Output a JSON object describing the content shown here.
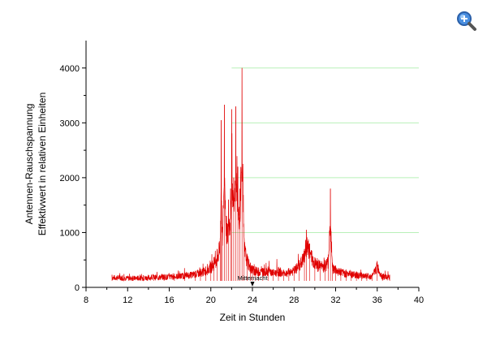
{
  "chart_data": {
    "type": "line",
    "xlabel": "Zeit in Stunden",
    "ylabel": [
      "Antennen-Rauschspannung",
      "Effektivwert in relativen Einheiten"
    ],
    "xlim": [
      8,
      40
    ],
    "ylim": [
      0,
      4500
    ],
    "xticks": [
      8,
      12,
      16,
      20,
      24,
      28,
      32,
      36,
      40
    ],
    "yticks": [
      0,
      1000,
      2000,
      3000,
      4000
    ],
    "grid": {
      "horizontal": true,
      "color": "#b8f0b8"
    },
    "series": [
      {
        "color": "#e00000",
        "x": [
          10.5,
          11.5,
          12.5,
          13.5,
          14.5,
          15.5,
          16.5,
          17.5,
          18.5,
          19.0,
          19.5,
          20.0,
          20.3,
          20.6,
          20.9,
          21.0,
          21.1,
          21.3,
          21.5,
          21.7,
          21.9,
          22.0,
          22.2,
          22.4,
          22.6,
          22.8,
          23.0,
          23.2,
          23.5,
          23.8,
          24.0,
          24.3,
          24.6,
          25.0,
          25.5,
          26.0,
          26.5,
          27.0,
          27.5,
          28.0,
          28.5,
          29.0,
          29.2,
          29.5,
          30.0,
          30.5,
          31.0,
          31.3,
          31.5,
          31.7,
          32.0,
          32.5,
          33.0,
          33.5,
          34.0,
          34.5,
          35.0,
          35.5,
          36.0,
          36.5,
          37.2
        ],
        "y": [
          230,
          220,
          210,
          220,
          230,
          240,
          250,
          270,
          300,
          340,
          380,
          450,
          550,
          700,
          900,
          3050,
          1100,
          3330,
          1300,
          1600,
          1800,
          3250,
          2000,
          3300,
          2200,
          1800,
          4000,
          900,
          600,
          450,
          400,
          380,
          360,
          350,
          380,
          330,
          360,
          320,
          350,
          380,
          500,
          700,
          1050,
          800,
          550,
          480,
          500,
          600,
          1800,
          450,
          400,
          350,
          320,
          300,
          290,
          270,
          260,
          250,
          480,
          240,
          230
        ]
      }
    ],
    "annotations": [
      {
        "text": "Mitternacht",
        "x": 24
      }
    ]
  },
  "icons": {
    "zoom": "zoom-in-icon"
  }
}
